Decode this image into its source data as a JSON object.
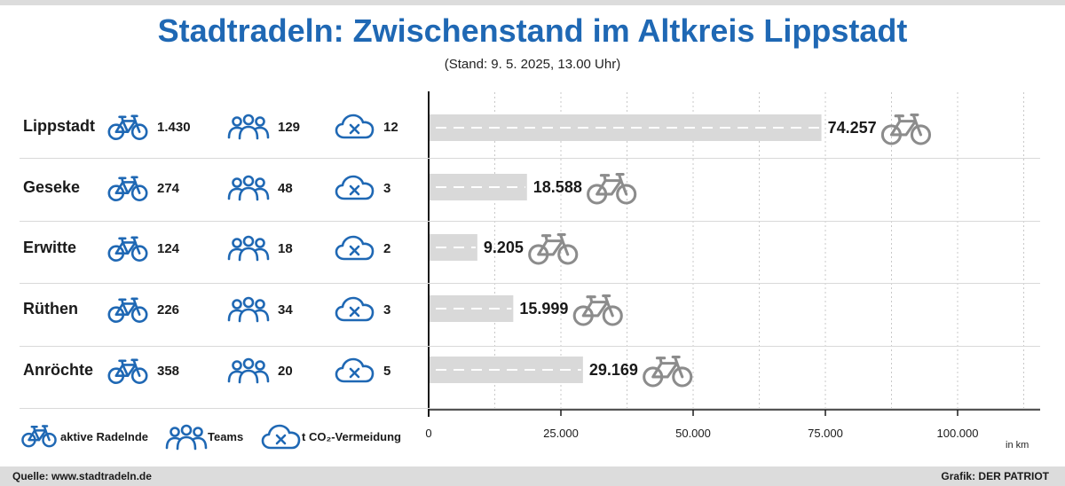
{
  "title": "Stadtradeln: Zwischenstand im Altkreis Lippstadt",
  "subtitle": "(Stand: 9. 5. 2025, 13.00 Uhr)",
  "colors": {
    "blue": "#1f68b4",
    "bar": "#d9d9d9",
    "grey_icon": "#8c8c8c"
  },
  "icons": {
    "riders": "bicycle-icon",
    "teams": "group-icon",
    "co2": "cloud-x-icon"
  },
  "rows": [
    {
      "name": "Lippstadt",
      "riders": "1.430",
      "teams": "129",
      "co2": "12",
      "km_label": "74.257"
    },
    {
      "name": "Geseke",
      "riders": "274",
      "teams": "48",
      "co2": "3",
      "km_label": "18.588"
    },
    {
      "name": "Erwitte",
      "riders": "124",
      "teams": "18",
      "co2": "2",
      "km_label": "9.205"
    },
    {
      "name": "Rüthen",
      "riders": "226",
      "teams": "34",
      "co2": "3",
      "km_label": "15.999"
    },
    {
      "name": "Anröchte",
      "riders": "358",
      "teams": "20",
      "co2": "5",
      "km_label": "29.169"
    }
  ],
  "legend": {
    "riders": "aktive Radelnde",
    "teams": "Teams",
    "co2": "t CO₂-Vermeidung"
  },
  "unit": "in km",
  "footer": {
    "source": "Quelle: www.stadtradeln.de",
    "credit": "Grafik: DER PATRIOT"
  },
  "chart_data": {
    "type": "bar",
    "orientation": "horizontal",
    "categories": [
      "Lippstadt",
      "Geseke",
      "Erwitte",
      "Rüthen",
      "Anröchte"
    ],
    "values": [
      74257,
      18588,
      9205,
      15999,
      29169
    ],
    "value_labels": [
      "74.257",
      "18.588",
      "9.205",
      "15.999",
      "29.169"
    ],
    "xlim": [
      0,
      115000
    ],
    "x_ticks": [
      0,
      25000,
      50000,
      75000,
      100000
    ],
    "x_tick_labels": [
      "0",
      "25.000",
      "50.000",
      "75.000",
      "100.000"
    ],
    "grid": "vertical dotted",
    "xlabel": "in km"
  }
}
